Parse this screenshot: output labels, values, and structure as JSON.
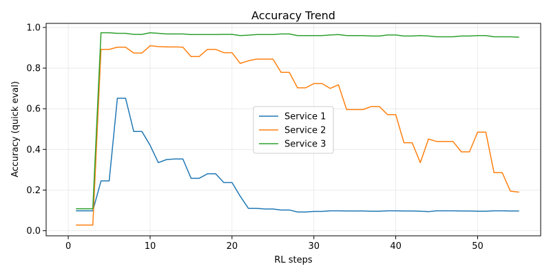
{
  "chart_data": {
    "type": "line",
    "title": "Accuracy Trend",
    "xlabel": "RL steps",
    "ylabel": "Accuracy (quick eval)",
    "xlim": [
      -2.7,
      57.7
    ],
    "ylim": [
      -0.025,
      1.02
    ],
    "xticks": [
      0,
      10,
      20,
      30,
      40,
      50
    ],
    "yticks": [
      0.0,
      0.2,
      0.4,
      0.6,
      0.8,
      1.0
    ],
    "grid": true,
    "legend_position": "center-right",
    "x": [
      1,
      2,
      3,
      4,
      5,
      6,
      7,
      8,
      9,
      10,
      11,
      12,
      13,
      14,
      15,
      16,
      17,
      18,
      19,
      20,
      21,
      22,
      23,
      24,
      25,
      26,
      27,
      28,
      29,
      30,
      31,
      32,
      33,
      34,
      35,
      36,
      37,
      38,
      39,
      40,
      41,
      42,
      43,
      44,
      45,
      46,
      47,
      48,
      49,
      50,
      51,
      52,
      53,
      54,
      55
    ],
    "series": [
      {
        "name": "Service 1",
        "color": "#1f77b4",
        "values": [
          0.098,
          0.098,
          0.098,
          0.245,
          0.245,
          0.652,
          0.652,
          0.488,
          0.488,
          0.42,
          0.335,
          0.35,
          0.353,
          0.353,
          0.258,
          0.258,
          0.28,
          0.28,
          0.237,
          0.237,
          0.17,
          0.11,
          0.11,
          0.107,
          0.107,
          0.102,
          0.102,
          0.092,
          0.092,
          0.095,
          0.095,
          0.098,
          0.098,
          0.097,
          0.097,
          0.097,
          0.096,
          0.096,
          0.098,
          0.098,
          0.097,
          0.097,
          0.096,
          0.094,
          0.098,
          0.098,
          0.098,
          0.097,
          0.097,
          0.096,
          0.096,
          0.098,
          0.098,
          0.097,
          0.097
        ]
      },
      {
        "name": "Service 2",
        "color": "#ff7f0e",
        "values": [
          0.028,
          0.028,
          0.028,
          0.892,
          0.892,
          0.903,
          0.903,
          0.874,
          0.874,
          0.91,
          0.906,
          0.904,
          0.904,
          0.903,
          0.857,
          0.857,
          0.892,
          0.892,
          0.876,
          0.876,
          0.823,
          0.836,
          0.844,
          0.844,
          0.844,
          0.779,
          0.779,
          0.703,
          0.703,
          0.724,
          0.724,
          0.7,
          0.718,
          0.596,
          0.596,
          0.596,
          0.611,
          0.611,
          0.571,
          0.571,
          0.433,
          0.433,
          0.335,
          0.451,
          0.439,
          0.439,
          0.439,
          0.388,
          0.388,
          0.485,
          0.485,
          0.286,
          0.286,
          0.195,
          0.19
        ]
      },
      {
        "name": "Service 3",
        "color": "#2ca02c",
        "values": [
          0.108,
          0.108,
          0.108,
          0.974,
          0.974,
          0.971,
          0.971,
          0.966,
          0.966,
          0.974,
          0.971,
          0.968,
          0.968,
          0.968,
          0.965,
          0.965,
          0.965,
          0.965,
          0.966,
          0.966,
          0.96,
          0.962,
          0.965,
          0.965,
          0.965,
          0.968,
          0.968,
          0.96,
          0.96,
          0.96,
          0.96,
          0.963,
          0.965,
          0.96,
          0.96,
          0.96,
          0.958,
          0.958,
          0.963,
          0.963,
          0.958,
          0.958,
          0.96,
          0.958,
          0.954,
          0.954,
          0.954,
          0.958,
          0.958,
          0.96,
          0.96,
          0.954,
          0.954,
          0.954,
          0.952
        ]
      }
    ]
  }
}
